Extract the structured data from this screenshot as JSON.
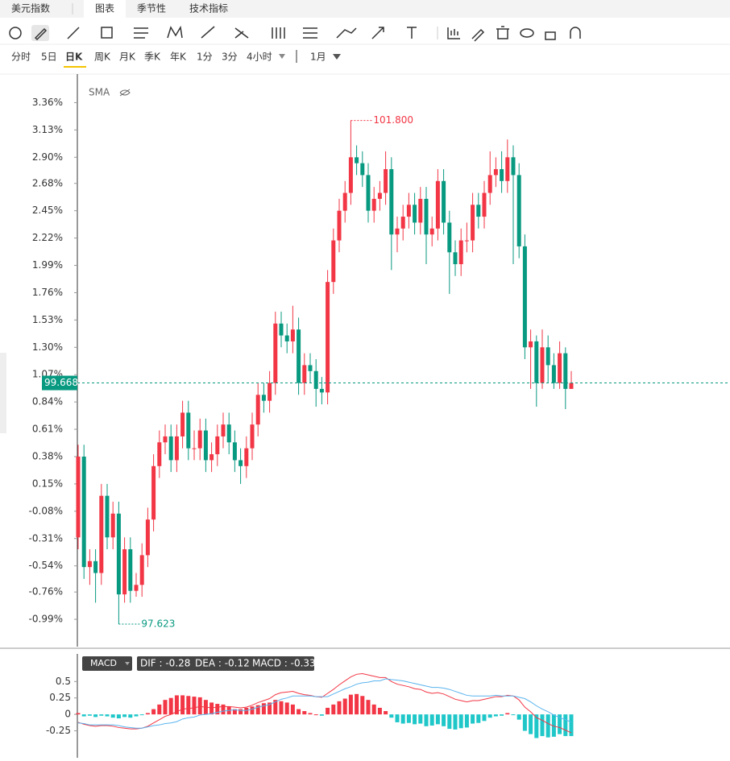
{
  "tabs": [
    "美元指数",
    "图表",
    "季节性",
    "技术指标"
  ],
  "periods": [
    "分时",
    "5日",
    "日K",
    "周K",
    "月K",
    "季K",
    "年K",
    "1分",
    "3分",
    "4小时"
  ],
  "period_dropdown": "1月",
  "chart_data": [
    {
      "type": "candlestick",
      "indicator": "SMA",
      "up_color": "#f23645",
      "down_color": "#089981",
      "open": [
        -0.3,
        0.38,
        -0.55,
        -0.5,
        -0.6,
        0.05,
        -0.3,
        -0.1,
        -0.78,
        -0.4,
        -0.75,
        -0.7,
        -0.45,
        -0.15,
        0.3,
        0.5,
        0.55,
        0.35,
        0.55,
        0.75,
        0.45,
        0.45,
        0.6,
        0.35,
        0.4,
        0.55,
        0.65,
        0.5,
        0.35,
        0.3,
        0.45,
        0.65,
        0.9,
        0.85,
        1.0,
        1.5,
        1.4,
        1.35,
        1.45,
        1.0,
        1.15,
        1.1,
        0.95,
        0.92,
        1.85,
        2.2,
        2.45,
        2.6,
        2.9,
        2.85,
        2.75,
        2.45,
        2.55,
        2.6,
        2.8,
        2.25,
        2.3,
        2.4,
        2.5,
        2.35,
        2.55,
        2.25,
        2.3,
        2.7,
        2.35,
        2.1,
        2.0,
        2.2,
        2.2,
        2.5,
        2.4,
        2.6,
        2.75,
        2.8,
        2.7,
        2.9,
        2.75,
        2.15,
        1.3,
        1.35,
        1.0,
        1.3,
        1.15,
        1.0,
        1.25,
        0.95
      ],
      "high": [
        0.48,
        0.48,
        -0.4,
        -0.4,
        0.15,
        0.15,
        0.0,
        0.0,
        -0.3,
        -0.3,
        -0.6,
        -0.35,
        -0.05,
        0.4,
        0.6,
        0.65,
        0.65,
        0.65,
        0.85,
        0.85,
        0.6,
        0.7,
        0.7,
        0.5,
        0.65,
        0.75,
        0.75,
        0.6,
        0.45,
        0.55,
        0.75,
        1.0,
        1.0,
        1.1,
        1.6,
        1.6,
        1.5,
        1.65,
        1.55,
        1.25,
        1.25,
        1.2,
        1.05,
        1.95,
        2.3,
        2.55,
        2.7,
        3.21,
        3.0,
        2.95,
        2.85,
        2.65,
        2.7,
        2.95,
        2.9,
        2.4,
        2.5,
        2.6,
        2.6,
        2.65,
        2.65,
        2.4,
        2.8,
        2.8,
        2.45,
        2.2,
        2.3,
        2.35,
        2.6,
        2.6,
        2.7,
        2.95,
        2.9,
        2.95,
        3.05,
        3.0,
        2.85,
        2.25,
        1.45,
        1.4,
        1.45,
        1.4,
        1.25,
        1.35,
        1.3,
        1.1
      ],
      "low": [
        -0.4,
        -0.65,
        -0.7,
        -0.85,
        -0.7,
        -0.4,
        -0.4,
        -1.03,
        -0.85,
        -0.85,
        -0.8,
        -0.8,
        -0.55,
        -0.25,
        0.2,
        0.4,
        0.25,
        0.25,
        0.45,
        0.35,
        0.35,
        0.35,
        0.25,
        0.25,
        0.3,
        0.45,
        0.4,
        0.25,
        0.15,
        0.2,
        0.35,
        0.55,
        0.75,
        0.75,
        0.9,
        1.3,
        1.25,
        1.25,
        0.9,
        0.9,
        1.0,
        0.8,
        0.82,
        0.82,
        1.75,
        2.1,
        2.35,
        2.5,
        2.75,
        2.65,
        2.35,
        2.35,
        2.45,
        2.5,
        1.95,
        2.1,
        2.2,
        2.3,
        2.25,
        2.25,
        2.0,
        2.15,
        2.2,
        2.25,
        1.75,
        1.9,
        1.9,
        2.1,
        2.1,
        2.3,
        2.3,
        2.5,
        2.65,
        2.6,
        2.6,
        2.0,
        2.05,
        1.2,
        0.95,
        0.8,
        0.95,
        1.0,
        0.95,
        0.95,
        0.78,
        0.95
      ],
      "close": [
        0.38,
        -0.55,
        -0.5,
        -0.6,
        0.05,
        -0.3,
        -0.1,
        -0.78,
        -0.4,
        -0.75,
        -0.7,
        -0.45,
        -0.15,
        0.3,
        0.5,
        0.55,
        0.35,
        0.55,
        0.75,
        0.45,
        0.45,
        0.6,
        0.35,
        0.4,
        0.55,
        0.65,
        0.5,
        0.35,
        0.3,
        0.45,
        0.65,
        0.9,
        0.85,
        1.0,
        1.5,
        1.4,
        1.35,
        1.45,
        1.0,
        1.15,
        1.1,
        0.95,
        0.92,
        1.85,
        2.2,
        2.45,
        2.6,
        2.9,
        2.85,
        2.75,
        2.45,
        2.55,
        2.6,
        2.8,
        2.25,
        2.3,
        2.4,
        2.5,
        2.35,
        2.55,
        2.25,
        2.3,
        2.7,
        2.35,
        2.1,
        2.0,
        2.2,
        2.2,
        2.5,
        2.4,
        2.6,
        2.75,
        2.8,
        2.7,
        2.9,
        2.75,
        2.15,
        1.3,
        1.35,
        1.0,
        1.3,
        1.15,
        1.0,
        1.25,
        0.95,
        1.0
      ],
      "ylim": [
        -1.22,
        3.58
      ],
      "yticks": [
        {
          "value": 3.36,
          "label": "3.36%"
        },
        {
          "value": 3.13,
          "label": "3.13%"
        },
        {
          "value": 2.9,
          "label": "2.90%"
        },
        {
          "value": 2.68,
          "label": "2.68%"
        },
        {
          "value": 2.45,
          "label": "2.45%"
        },
        {
          "value": 2.22,
          "label": "2.22%"
        },
        {
          "value": 1.99,
          "label": "1.99%"
        },
        {
          "value": 1.76,
          "label": "1.76%"
        },
        {
          "value": 1.53,
          "label": "1.53%"
        },
        {
          "value": 1.3,
          "label": "1.30%"
        },
        {
          "value": 1.07,
          "label": "1.07%"
        },
        {
          "value": 0.84,
          "label": "0.84%"
        },
        {
          "value": 0.61,
          "label": "0.61%"
        },
        {
          "value": 0.38,
          "label": "0.38%"
        },
        {
          "value": 0.15,
          "label": "0.15%"
        },
        {
          "value": -0.08,
          "label": "-0.08%"
        },
        {
          "value": -0.31,
          "label": "-0.31%"
        },
        {
          "value": -0.54,
          "label": "-0.54%"
        },
        {
          "value": -0.76,
          "label": "-0.76%"
        },
        {
          "value": -0.99,
          "label": "-0.99%"
        }
      ],
      "high_label": "101.800",
      "low_label": "97.623",
      "last_label": "99.668"
    },
    {
      "type": "macd",
      "name": "MACD",
      "legend": [
        "DIF : -0.28",
        "DEA : -0.12",
        "MACD : -0.33"
      ],
      "dif_color": "#f23645",
      "dea_color": "#5ab4ee",
      "up_color": "#f23645",
      "down_color": "#1fc7c9",
      "dif": [
        -0.12,
        -0.15,
        -0.17,
        -0.18,
        -0.17,
        -0.17,
        -0.18,
        -0.2,
        -0.21,
        -0.22,
        -0.22,
        -0.21,
        -0.18,
        -0.13,
        -0.08,
        -0.03,
        0.0,
        0.04,
        0.08,
        0.09,
        0.1,
        0.12,
        0.11,
        0.1,
        0.11,
        0.12,
        0.12,
        0.11,
        0.1,
        0.11,
        0.14,
        0.18,
        0.21,
        0.24,
        0.3,
        0.33,
        0.34,
        0.35,
        0.32,
        0.3,
        0.29,
        0.27,
        0.26,
        0.32,
        0.38,
        0.45,
        0.51,
        0.57,
        0.61,
        0.62,
        0.6,
        0.58,
        0.56,
        0.56,
        0.5,
        0.46,
        0.44,
        0.42,
        0.39,
        0.38,
        0.34,
        0.32,
        0.33,
        0.31,
        0.27,
        0.23,
        0.21,
        0.19,
        0.21,
        0.21,
        0.23,
        0.25,
        0.27,
        0.27,
        0.29,
        0.28,
        0.22,
        0.11,
        0.04,
        -0.05,
        -0.09,
        -0.14,
        -0.18,
        -0.2,
        -0.24,
        -0.28
      ],
      "dea": [
        -0.13,
        -0.14,
        -0.16,
        -0.16,
        -0.16,
        -0.16,
        -0.16,
        -0.17,
        -0.19,
        -0.2,
        -0.21,
        -0.21,
        -0.19,
        -0.17,
        -0.16,
        -0.14,
        -0.13,
        -0.11,
        -0.07,
        -0.05,
        -0.04,
        -0.01,
        0.0,
        0.01,
        0.03,
        0.05,
        0.06,
        0.07,
        0.06,
        0.06,
        0.08,
        0.11,
        0.13,
        0.15,
        0.19,
        0.23,
        0.25,
        0.28,
        0.28,
        0.28,
        0.28,
        0.27,
        0.27,
        0.27,
        0.31,
        0.35,
        0.39,
        0.42,
        0.46,
        0.48,
        0.49,
        0.51,
        0.51,
        0.54,
        0.53,
        0.52,
        0.51,
        0.49,
        0.47,
        0.45,
        0.43,
        0.41,
        0.41,
        0.4,
        0.38,
        0.35,
        0.32,
        0.29,
        0.28,
        0.28,
        0.28,
        0.28,
        0.29,
        0.28,
        0.28,
        0.28,
        0.26,
        0.24,
        0.19,
        0.13,
        0.08,
        0.04,
        -0.01,
        -0.05,
        -0.08,
        -0.12
      ],
      "hist": [
        0.02,
        -0.03,
        -0.02,
        -0.04,
        -0.02,
        -0.03,
        -0.05,
        -0.06,
        -0.04,
        -0.05,
        -0.03,
        -0.01,
        0.02,
        0.08,
        0.15,
        0.22,
        0.25,
        0.29,
        0.29,
        0.28,
        0.27,
        0.26,
        0.22,
        0.18,
        0.16,
        0.15,
        0.12,
        0.08,
        0.08,
        0.1,
        0.12,
        0.14,
        0.17,
        0.18,
        0.22,
        0.2,
        0.18,
        0.15,
        0.08,
        0.05,
        0.02,
        0.0,
        -0.02,
        0.1,
        0.15,
        0.2,
        0.24,
        0.3,
        0.31,
        0.28,
        0.22,
        0.15,
        0.1,
        0.05,
        -0.05,
        -0.12,
        -0.14,
        -0.13,
        -0.15,
        -0.14,
        -0.18,
        -0.17,
        -0.15,
        -0.18,
        -0.22,
        -0.23,
        -0.21,
        -0.2,
        -0.14,
        -0.13,
        -0.1,
        -0.05,
        -0.03,
        -0.02,
        0.02,
        -0.01,
        -0.08,
        -0.25,
        -0.3,
        -0.36,
        -0.33,
        -0.35,
        -0.34,
        -0.3,
        -0.33,
        -0.33
      ],
      "ylim": [
        -0.66,
        0.92
      ],
      "yticks": [
        0.5,
        0.25,
        0,
        -0.25
      ]
    }
  ]
}
